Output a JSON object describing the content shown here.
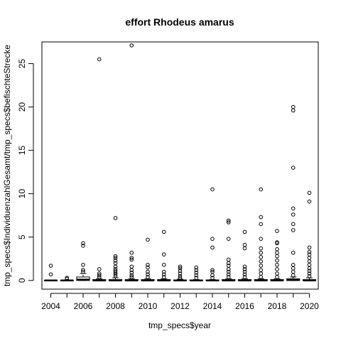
{
  "chart_data": {
    "type": "boxplot",
    "title": "effort Rhodeus amarus",
    "xlabel": "tmp_specs$year",
    "ylabel": "tmp_specs$IndividuenzahlGesamt/tmp_specs$befischteStrecke",
    "x_tick_labels": [
      "2004",
      "2006",
      "2008",
      "2010",
      "2012",
      "2014",
      "2016",
      "2018",
      "2020"
    ],
    "y_tick_labels": [
      "0",
      "5",
      "10",
      "15",
      "20",
      "25"
    ],
    "ylim": [
      -1,
      27.5
    ],
    "grid": false,
    "legend": "none",
    "groups": [
      {
        "year": 2004,
        "q1": 0,
        "median": 0,
        "q3": 0,
        "whisker_low": 0,
        "whisker_high": 0,
        "outliers": [
          0.7,
          1.7
        ]
      },
      {
        "year": 2005,
        "q1": 0,
        "median": 0,
        "q3": 0,
        "whisker_low": 0,
        "whisker_high": 0,
        "outliers": [
          0.2,
          0.3
        ]
      },
      {
        "year": 2006,
        "q1": 0,
        "median": 0.1,
        "q3": 0.4,
        "whisker_low": 0,
        "whisker_high": 0.8,
        "outliers": [
          1.0,
          1.2,
          1.8,
          4.0,
          4.3
        ]
      },
      {
        "year": 2007,
        "q1": 0,
        "median": 0,
        "q3": 0.1,
        "whisker_low": 0,
        "whisker_high": 0.2,
        "outliers": [
          0.4,
          0.6,
          0.8,
          1.3,
          25.5
        ]
      },
      {
        "year": 2008,
        "q1": 0,
        "median": 0,
        "q3": 0.1,
        "whisker_low": 0,
        "whisker_high": 0.3,
        "outliers": [
          0.5,
          0.7,
          0.9,
          1.1,
          1.3,
          1.6,
          2.0,
          2.3,
          2.6,
          2.8,
          7.2
        ]
      },
      {
        "year": 2009,
        "q1": 0,
        "median": 0,
        "q3": 0.1,
        "whisker_low": 0,
        "whisker_high": 0.2,
        "outliers": [
          0.4,
          0.6,
          0.9,
          1.2,
          1.6,
          2.4,
          2.6,
          3.2,
          27.1
        ]
      },
      {
        "year": 2010,
        "q1": 0,
        "median": 0,
        "q3": 0.1,
        "whisker_low": 0,
        "whisker_high": 0.2,
        "outliers": [
          0.4,
          0.7,
          1.0,
          1.5,
          1.8,
          4.7
        ]
      },
      {
        "year": 2011,
        "q1": 0,
        "median": 0,
        "q3": 0.1,
        "whisker_low": 0,
        "whisker_high": 0.2,
        "outliers": [
          0.4,
          0.7,
          1.0,
          1.8,
          3.0,
          5.6
        ]
      },
      {
        "year": 2012,
        "q1": 0,
        "median": 0,
        "q3": 0.05,
        "whisker_low": 0,
        "whisker_high": 0.15,
        "outliers": [
          0.3,
          0.5,
          0.8,
          1.1,
          1.4,
          1.6
        ]
      },
      {
        "year": 2013,
        "q1": 0,
        "median": 0,
        "q3": 0.05,
        "whisker_low": 0,
        "whisker_high": 0.1,
        "outliers": [
          0.3,
          0.6,
          0.9,
          1.2,
          1.5
        ]
      },
      {
        "year": 2014,
        "q1": 0,
        "median": 0,
        "q3": 0.05,
        "whisker_low": 0,
        "whisker_high": 0.1,
        "outliers": [
          0.3,
          0.6,
          1.0,
          1.2,
          3.8,
          4.8,
          10.5
        ]
      },
      {
        "year": 2015,
        "q1": 0,
        "median": 0,
        "q3": 0.1,
        "whisker_low": 0,
        "whisker_high": 0.2,
        "outliers": [
          0.4,
          0.7,
          1.0,
          1.3,
          1.7,
          2.0,
          2.4,
          4.8,
          6.7,
          6.9
        ]
      },
      {
        "year": 2016,
        "q1": 0,
        "median": 0,
        "q3": 0.1,
        "whisker_low": 0,
        "whisker_high": 0.2,
        "outliers": [
          0.4,
          0.7,
          1.0,
          1.3,
          1.6,
          3.7,
          4.1,
          5.6
        ]
      },
      {
        "year": 2017,
        "q1": 0,
        "median": 0,
        "q3": 0.1,
        "whisker_low": 0,
        "whisker_high": 0.2,
        "outliers": [
          0.4,
          0.8,
          1.2,
          1.7,
          2.2,
          2.7,
          3.2,
          3.7,
          4.8,
          6.5,
          7.3,
          10.5
        ]
      },
      {
        "year": 2018,
        "q1": 0,
        "median": 0,
        "q3": 0.1,
        "whisker_low": 0,
        "whisker_high": 0.2,
        "outliers": [
          0.4,
          0.8,
          1.3,
          1.8,
          2.3,
          2.8,
          3.2,
          3.6,
          4.3,
          4.4,
          5.7
        ]
      },
      {
        "year": 2019,
        "q1": 0,
        "median": 0.05,
        "q3": 0.2,
        "whisker_low": 0,
        "whisker_high": 0.4,
        "outliers": [
          0.6,
          1.0,
          1.4,
          1.8,
          3.2,
          5.8,
          6.5,
          7.6,
          8.3,
          13.0,
          19.6,
          20.0
        ]
      },
      {
        "year": 2020,
        "q1": 0,
        "median": 0,
        "q3": 0.1,
        "whisker_low": 0,
        "whisker_high": 0.3,
        "outliers": [
          0.5,
          0.8,
          1.1,
          1.4,
          1.8,
          2.2,
          2.6,
          3.0,
          3.3,
          3.8,
          9.1,
          10.1
        ]
      }
    ]
  }
}
